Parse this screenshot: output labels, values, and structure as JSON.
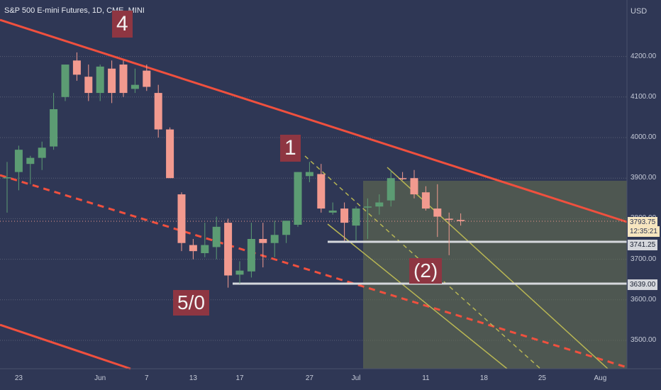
{
  "title": "S&P 500 E-mini Futures, 1D, CME_MINI",
  "currency_label": "USD",
  "labels": {
    "wave_4": "4",
    "wave_1": "1",
    "wave_5_0": "5/0",
    "wave_2": "(2)"
  },
  "price_tags": {
    "last": "3793.75",
    "countdown": "12:35:21",
    "level_a": "3741.25",
    "level_b": "3639.00"
  },
  "colors": {
    "background": "#2f3755",
    "up": "#5c9c73",
    "down": "#f29a8f",
    "trendline": "#f0503e",
    "channel": "#b8b653",
    "label_bg": "#8e3642"
  },
  "chart_data": {
    "type": "candlestick",
    "title": "S&P 500 E-mini Futures, 1D, CME_MINI",
    "ylabel": "USD",
    "ylim": [
      3410,
      4310
    ],
    "y_ticks": [
      4200,
      4100,
      4000,
      3900,
      3800,
      3700,
      3600,
      3500
    ],
    "x_ticks": [
      "23",
      "Jun",
      "7",
      "13",
      "17",
      "27",
      "Jul",
      "11",
      "18",
      "25",
      "Aug"
    ],
    "x_tick_index": [
      1,
      8,
      12,
      16,
      20,
      26,
      30,
      36,
      41,
      46,
      51
    ],
    "candles": [
      {
        "o": 3900,
        "h": 3940,
        "l": 3815,
        "c": 3902
      },
      {
        "o": 3915,
        "h": 3980,
        "l": 3870,
        "c": 3970
      },
      {
        "o": 3935,
        "h": 3955,
        "l": 3885,
        "c": 3950
      },
      {
        "o": 3950,
        "h": 3990,
        "l": 3920,
        "c": 3975
      },
      {
        "o": 3978,
        "h": 4110,
        "l": 3970,
        "c": 4070
      },
      {
        "o": 4100,
        "h": 4180,
        "l": 4090,
        "c": 4180
      },
      {
        "o": 4190,
        "h": 4210,
        "l": 4140,
        "c": 4155
      },
      {
        "o": 4150,
        "h": 4180,
        "l": 4090,
        "c": 4110
      },
      {
        "o": 4110,
        "h": 4180,
        "l": 4090,
        "c": 4175
      },
      {
        "o": 4170,
        "h": 4190,
        "l": 4085,
        "c": 4110
      },
      {
        "o": 4180,
        "h": 4190,
        "l": 4100,
        "c": 4110
      },
      {
        "o": 4120,
        "h": 4170,
        "l": 4110,
        "c": 4130
      },
      {
        "o": 4165,
        "h": 4180,
        "l": 4115,
        "c": 4125
      },
      {
        "o": 4110,
        "h": 4130,
        "l": 4000,
        "c": 4020
      },
      {
        "o": 4020,
        "h": 4025,
        "l": 3900,
        "c": 3900
      },
      {
        "o": 3860,
        "h": 3865,
        "l": 3720,
        "c": 3740
      },
      {
        "o": 3735,
        "h": 3750,
        "l": 3700,
        "c": 3720
      },
      {
        "o": 3715,
        "h": 3790,
        "l": 3705,
        "c": 3735
      },
      {
        "o": 3730,
        "h": 3805,
        "l": 3700,
        "c": 3780
      },
      {
        "o": 3790,
        "h": 3800,
        "l": 3630,
        "c": 3660
      },
      {
        "o": 3662,
        "h": 3695,
        "l": 3640,
        "c": 3672
      },
      {
        "o": 3670,
        "h": 3790,
        "l": 3655,
        "c": 3750
      },
      {
        "o": 3750,
        "h": 3790,
        "l": 3680,
        "c": 3740
      },
      {
        "o": 3740,
        "h": 3795,
        "l": 3705,
        "c": 3760
      },
      {
        "o": 3760,
        "h": 3790,
        "l": 3740,
        "c": 3795
      },
      {
        "o": 3785,
        "h": 3915,
        "l": 3780,
        "c": 3915
      },
      {
        "o": 3905,
        "h": 3940,
        "l": 3890,
        "c": 3915
      },
      {
        "o": 3910,
        "h": 3935,
        "l": 3815,
        "c": 3825
      },
      {
        "o": 3815,
        "h": 3840,
        "l": 3810,
        "c": 3820
      },
      {
        "o": 3825,
        "h": 3840,
        "l": 3745,
        "c": 3790
      },
      {
        "o": 3783,
        "h": 3830,
        "l": 3745,
        "c": 3825
      },
      {
        "o": 3828,
        "h": 3850,
        "l": 3750,
        "c": 3830
      },
      {
        "o": 3830,
        "h": 3860,
        "l": 3810,
        "c": 3840
      },
      {
        "o": 3845,
        "h": 3920,
        "l": 3830,
        "c": 3900
      },
      {
        "o": 3900,
        "h": 3915,
        "l": 3895,
        "c": 3898
      },
      {
        "o": 3900,
        "h": 3920,
        "l": 3850,
        "c": 3860
      },
      {
        "o": 3865,
        "h": 3880,
        "l": 3820,
        "c": 3825
      },
      {
        "o": 3825,
        "h": 3885,
        "l": 3755,
        "c": 3805
      },
      {
        "o": 3800,
        "h": 3815,
        "l": 3710,
        "c": 3797
      },
      {
        "o": 3797,
        "h": 3813,
        "l": 3783,
        "c": 3794
      }
    ]
  }
}
